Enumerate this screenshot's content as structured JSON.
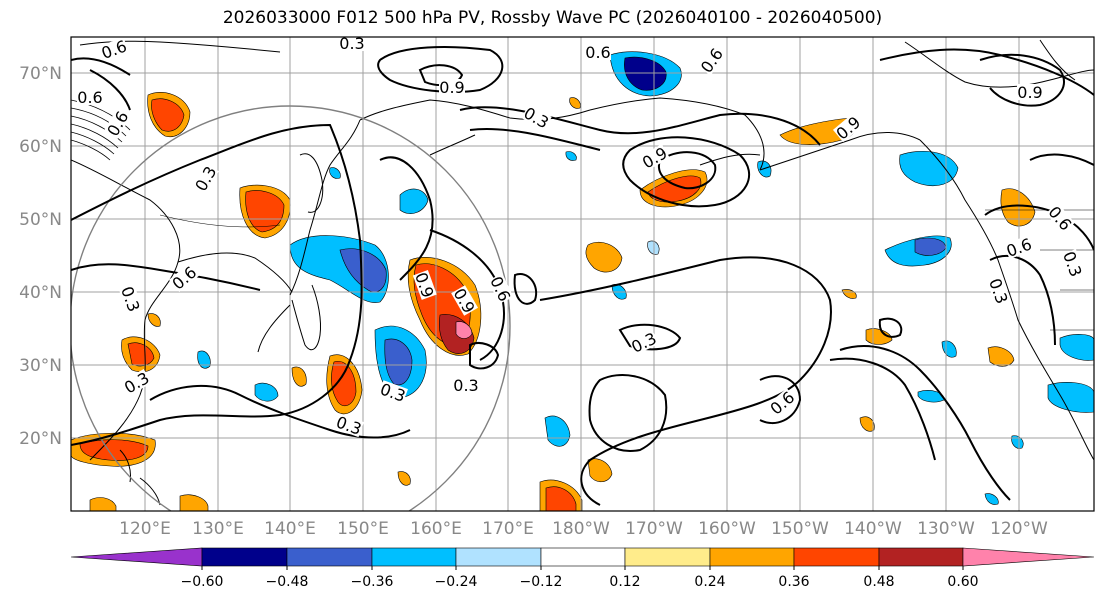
{
  "title": "2026033000 F012 500 hPa PV, Rossby Wave PC (2026040100 - 2026040500)",
  "lat_labels": [
    "70°N",
    "60°N",
    "50°N",
    "40°N",
    "30°N",
    "20°N"
  ],
  "lon_labels": [
    "120°E",
    "130°E",
    "140°E",
    "150°E",
    "160°E",
    "170°E",
    "180°W",
    "170°W",
    "160°W",
    "150°W",
    "140°W",
    "130°W",
    "120°W"
  ],
  "colorbar": {
    "ticks": [
      "−0.60",
      "−0.48",
      "−0.36",
      "−0.24",
      "−0.12",
      "0.12",
      "0.24",
      "0.36",
      "0.48",
      "0.60"
    ],
    "colors": [
      "#9932cc",
      "#00008b",
      "#3a5fcd",
      "#00bfff",
      "#b0e2ff",
      "#ffffff",
      "#ffec8b",
      "#ffa500",
      "#ff4500",
      "#b22222",
      "#ff82ab"
    ]
  },
  "contour_labels": [
    "0.6",
    "0.6",
    "0.9",
    "0.6",
    "0.3",
    "0.3",
    "0.6",
    "0.3",
    "0.9",
    "0.3",
    "0.6",
    "0.9",
    "0.3",
    "0.9",
    "0.6",
    "0.6",
    "0.9",
    "0.3",
    "0.3",
    "0.3",
    "0.3",
    "0.6",
    "0.3",
    "0.6",
    "0.6",
    "0.9",
    "0.3"
  ]
}
